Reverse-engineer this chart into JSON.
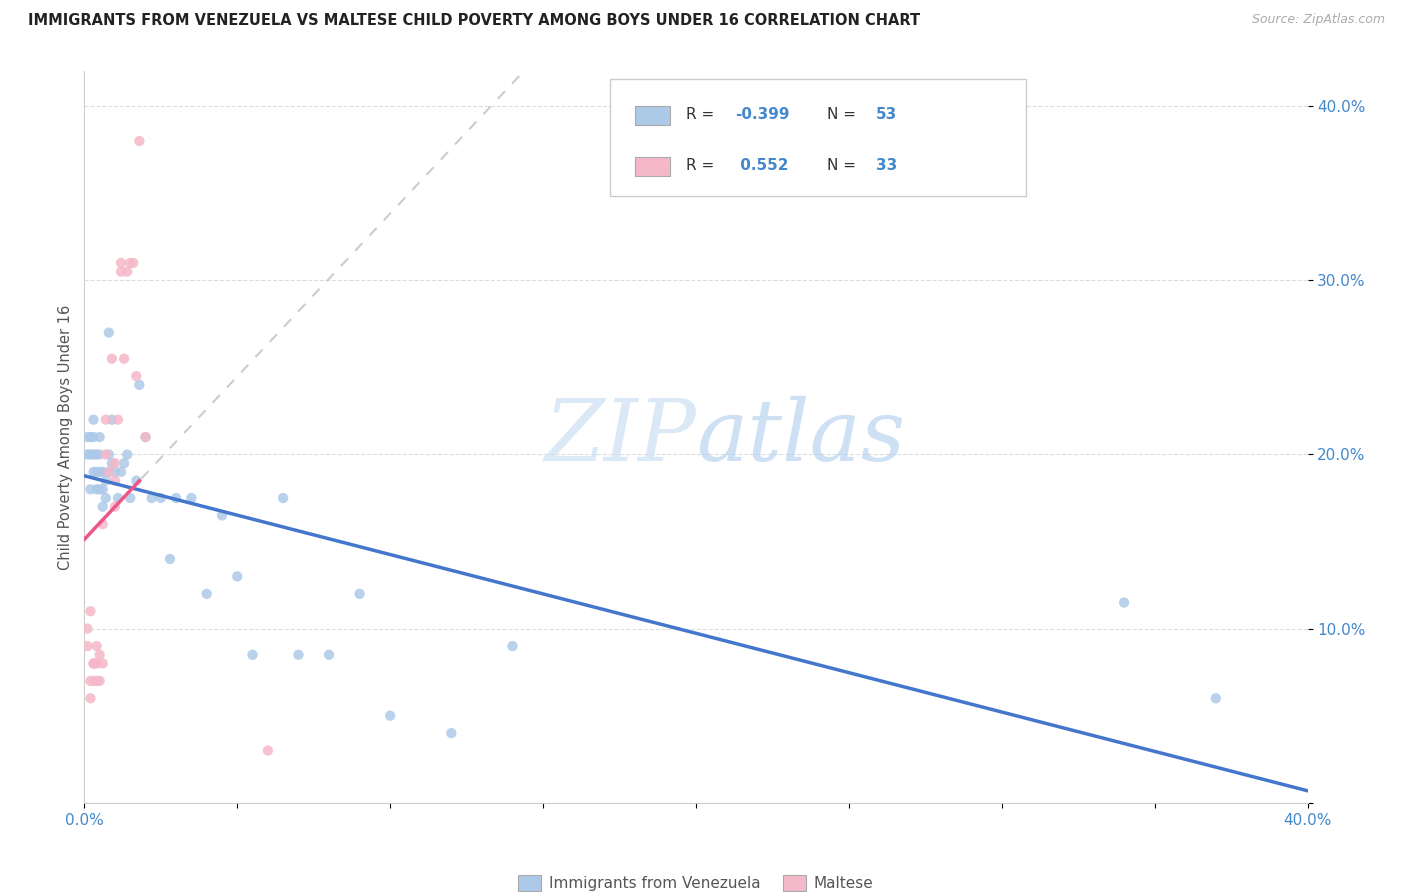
{
  "title": "IMMIGRANTS FROM VENEZUELA VS MALTESE CHILD POVERTY AMONG BOYS UNDER 16 CORRELATION CHART",
  "source": "Source: ZipAtlas.com",
  "ylabel": "Child Poverty Among Boys Under 16",
  "xlim": [
    0.0,
    0.4
  ],
  "ylim": [
    0.0,
    0.42
  ],
  "ytick_vals": [
    0.0,
    0.1,
    0.2,
    0.3,
    0.4
  ],
  "ytick_labels": [
    "",
    "10.0%",
    "20.0%",
    "30.0%",
    "40.0%"
  ],
  "xtick_vals": [
    0.0,
    0.05,
    0.1,
    0.15,
    0.2,
    0.25,
    0.3,
    0.35,
    0.4
  ],
  "xtick_labels": [
    "0.0%",
    "",
    "",
    "",
    "",
    "",
    "",
    "",
    "40.0%"
  ],
  "color_venezuela": "#adc9e8",
  "color_maltese": "#f5b8c8",
  "color_trendline_venezuela": "#4477cc",
  "color_trendline_maltese": "#ee5588",
  "color_trendline_dashed": "#cccccc",
  "watermark": "ZIPatlas",
  "background_color": "#ffffff",
  "venezuela_x": [
    0.001,
    0.001,
    0.002,
    0.002,
    0.002,
    0.003,
    0.003,
    0.003,
    0.003,
    0.004,
    0.004,
    0.004,
    0.005,
    0.005,
    0.005,
    0.005,
    0.006,
    0.006,
    0.006,
    0.007,
    0.007,
    0.008,
    0.008,
    0.008,
    0.009,
    0.009,
    0.01,
    0.011,
    0.012,
    0.013,
    0.014,
    0.015,
    0.017,
    0.018,
    0.02,
    0.022,
    0.025,
    0.028,
    0.03,
    0.035,
    0.04,
    0.045,
    0.05,
    0.055,
    0.065,
    0.07,
    0.08,
    0.09,
    0.1,
    0.12,
    0.14,
    0.34,
    0.37
  ],
  "venezuela_y": [
    0.2,
    0.21,
    0.18,
    0.2,
    0.21,
    0.19,
    0.2,
    0.21,
    0.22,
    0.18,
    0.19,
    0.2,
    0.18,
    0.19,
    0.2,
    0.21,
    0.17,
    0.18,
    0.19,
    0.175,
    0.185,
    0.19,
    0.2,
    0.27,
    0.22,
    0.195,
    0.19,
    0.175,
    0.19,
    0.195,
    0.2,
    0.175,
    0.185,
    0.24,
    0.21,
    0.175,
    0.175,
    0.14,
    0.175,
    0.175,
    0.12,
    0.165,
    0.13,
    0.085,
    0.175,
    0.085,
    0.085,
    0.12,
    0.05,
    0.04,
    0.09,
    0.115,
    0.06
  ],
  "maltese_x": [
    0.001,
    0.001,
    0.002,
    0.002,
    0.002,
    0.003,
    0.003,
    0.003,
    0.004,
    0.004,
    0.004,
    0.005,
    0.005,
    0.006,
    0.006,
    0.007,
    0.007,
    0.008,
    0.009,
    0.01,
    0.01,
    0.01,
    0.011,
    0.012,
    0.012,
    0.013,
    0.014,
    0.015,
    0.016,
    0.017,
    0.018,
    0.02,
    0.06
  ],
  "maltese_y": [
    0.09,
    0.1,
    0.06,
    0.07,
    0.11,
    0.07,
    0.08,
    0.08,
    0.07,
    0.08,
    0.09,
    0.07,
    0.085,
    0.08,
    0.16,
    0.2,
    0.22,
    0.19,
    0.255,
    0.17,
    0.195,
    0.185,
    0.22,
    0.305,
    0.31,
    0.255,
    0.305,
    0.31,
    0.31,
    0.245,
    0.38,
    0.21,
    0.03
  ],
  "trendline_ven_xstart": 0.0,
  "trendline_ven_xend": 0.4,
  "trendline_mal_solid_xstart": 0.0,
  "trendline_mal_solid_xend": 0.018,
  "trendline_mal_dash_xstart": 0.0,
  "trendline_mal_dash_xend": 0.28
}
